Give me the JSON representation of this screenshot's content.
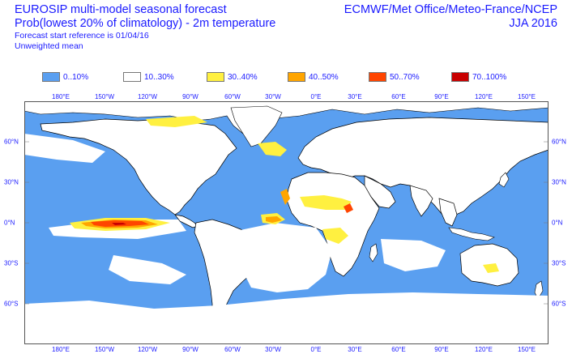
{
  "title": {
    "line1": "EUROSIP multi-model seasonal forecast",
    "line2": "Prob(lowest 20% of climatology) - 2m temperature",
    "line3": "Forecast start reference is 01/04/16",
    "line4": "Unweighted mean"
  },
  "source": {
    "centres": "ECMWF/Met Office/Meteo-France/NCEP",
    "season": "JJA 2016"
  },
  "legend": [
    {
      "label": "0..10%",
      "color": "#5a9ff0"
    },
    {
      "label": "10..30%",
      "color": "#ffffff"
    },
    {
      "label": "30..40%",
      "color": "#fff040"
    },
    {
      "label": "40..50%",
      "color": "#ffa500"
    },
    {
      "label": "50..70%",
      "color": "#ff4500"
    },
    {
      "label": "70..100%",
      "color": "#c80000"
    }
  ],
  "axes": {
    "lon_labels": [
      "180°E",
      "150°W",
      "120°W",
      "90°W",
      "60°W",
      "30°W",
      "0°E",
      "30°E",
      "60°E",
      "90°E",
      "120°E",
      "150°E"
    ],
    "lat_labels_left": [
      "60°N",
      "30°N",
      "0°N",
      "30°S",
      "60°S"
    ],
    "lat_labels_right": [
      "60°N",
      "30°N",
      "0°N",
      "30°S",
      "60°S"
    ]
  },
  "map": {
    "ocean_color": "#5a9ff0",
    "land_color": "#ffffff",
    "coast_color": "#000000"
  }
}
